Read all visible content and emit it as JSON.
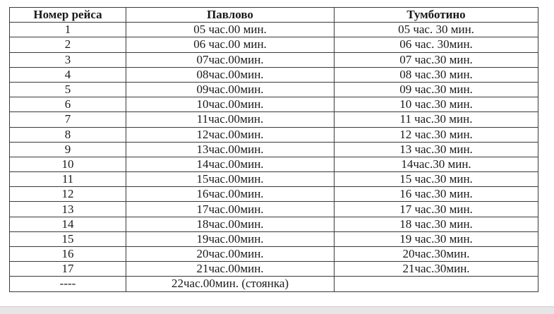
{
  "table": {
    "headers": [
      "Номер рейса",
      "Павлово",
      "Тумботино"
    ],
    "rows": [
      [
        "1",
        "05 час.00 мин.",
        "05 час. 30 мин."
      ],
      [
        "2",
        "06 час.00 мин.",
        "06 час. 30мин."
      ],
      [
        "3",
        "07час.00мин.",
        "07 час.30 мин."
      ],
      [
        "4",
        "08час.00мин.",
        "08 час.30 мин."
      ],
      [
        "5",
        "09час.00мин.",
        "09 час.30 мин."
      ],
      [
        "6",
        "10час.00мин.",
        "10 час.30 мин."
      ],
      [
        "7",
        "11час.00мин.",
        "11 час.30 мин."
      ],
      [
        "8",
        "12час.00мин.",
        "12 час.30 мин."
      ],
      [
        "9",
        "13час.00мин.",
        "13 час.30 мин."
      ],
      [
        "10",
        "14час.00мин.",
        "14час.30 мин."
      ],
      [
        "11",
        "15час.00мин.",
        "15 час.30 мин."
      ],
      [
        "12",
        "16час.00мин.",
        "16 час.30 мин."
      ],
      [
        "13",
        "17час.00мин.",
        "17 час.30 мин."
      ],
      [
        "14",
        "18час.00мин.",
        "18 час.30 мин."
      ],
      [
        "15",
        "19час.00мин.",
        "19 час.30 мин."
      ],
      [
        "16",
        "20час.00мин.",
        "20час.30мин."
      ],
      [
        "17",
        "21час.00мин.",
        "21час.30мин."
      ],
      [
        "----",
        "22час.00мин. (стоянка)",
        ""
      ]
    ]
  }
}
